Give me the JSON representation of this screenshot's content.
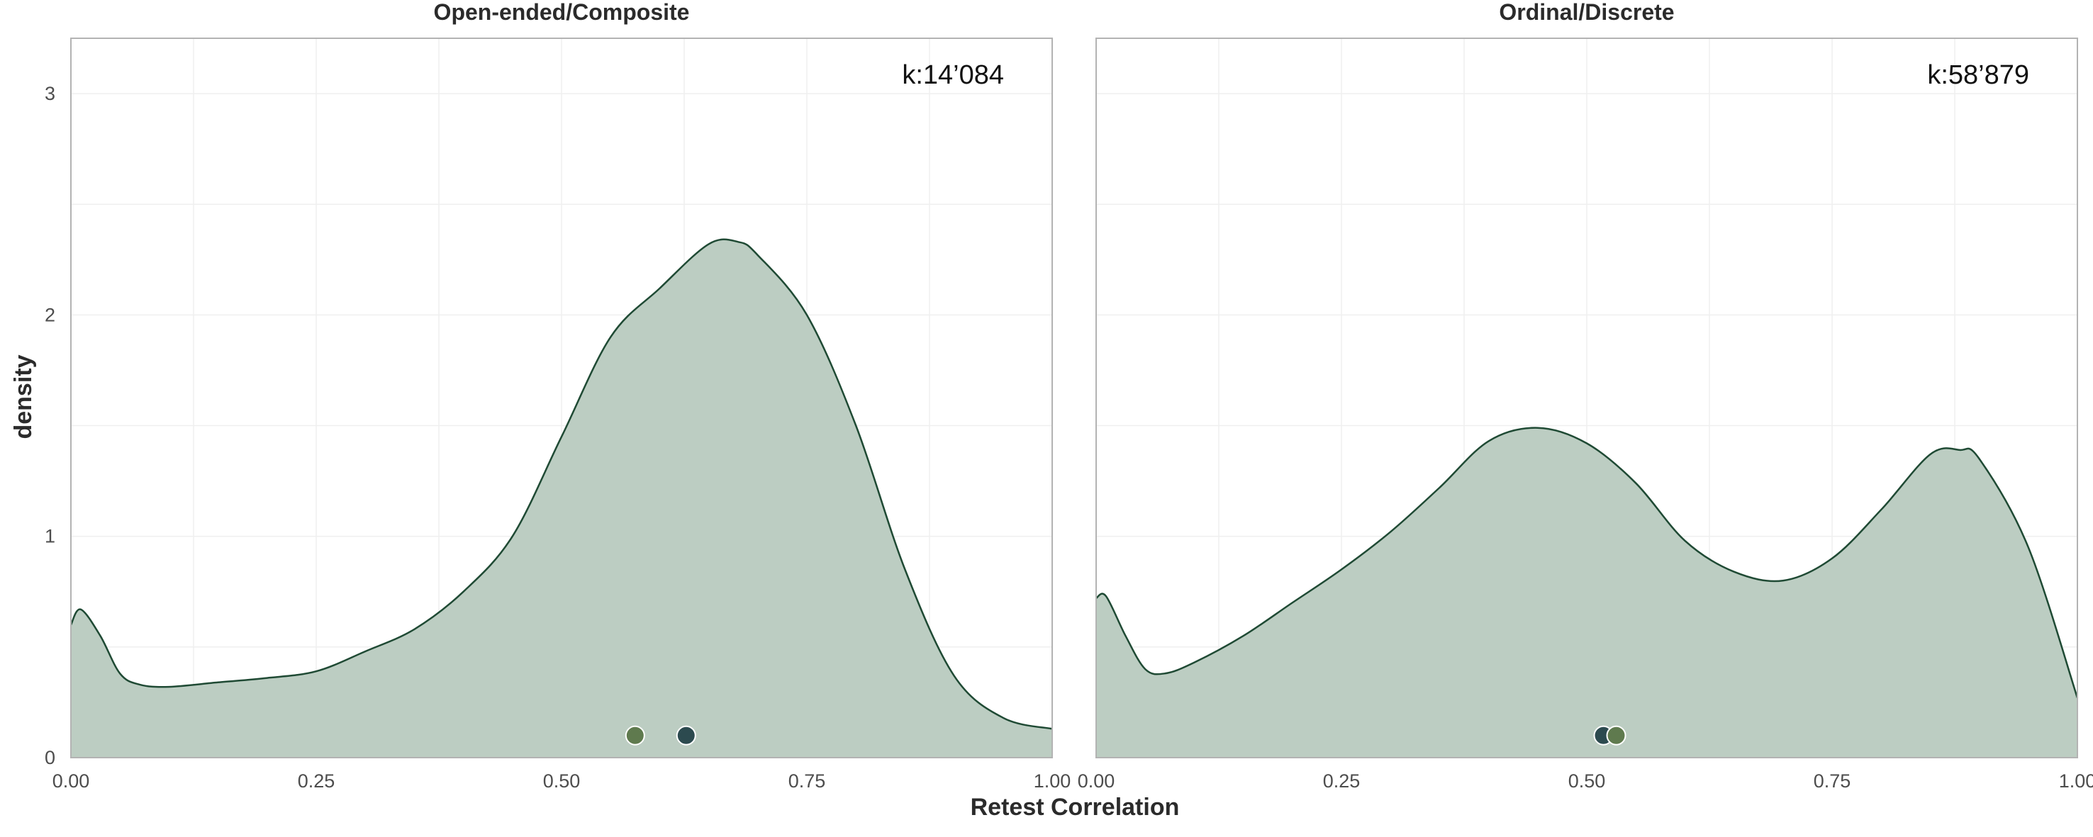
{
  "chart_data": {
    "type": "area",
    "xlabel": "Retest Correlation",
    "ylabel": "density",
    "xlim": [
      0,
      1
    ],
    "ylim": [
      0,
      3.25
    ],
    "x_ticks": [
      0,
      0.25,
      0.5,
      0.75,
      1
    ],
    "x_tick_labels": [
      "0.00",
      "0.25",
      "0.50",
      "0.75",
      "1.00"
    ],
    "y_ticks": [
      0,
      1,
      2,
      3
    ],
    "y_tick_labels": [
      "0",
      "1",
      "2",
      "3"
    ],
    "grid": true,
    "colors": {
      "fill": "#bccdc2",
      "line": "#1f4a34",
      "dot_dark": "#2c4a4f",
      "dot_green": "#5f7a4e",
      "frame": "#b3b3b3",
      "grid": "#efefef"
    },
    "panels": [
      {
        "title": "Open-ended/Composite",
        "annotation": "k:14’084",
        "x": [
          0,
          0.01,
          0.03,
          0.05,
          0.07,
          0.1,
          0.15,
          0.2,
          0.25,
          0.3,
          0.35,
          0.4,
          0.45,
          0.5,
          0.55,
          0.6,
          0.65,
          0.68,
          0.7,
          0.75,
          0.8,
          0.85,
          0.9,
          0.95,
          1.0
        ],
        "density": [
          0.6,
          0.67,
          0.55,
          0.38,
          0.33,
          0.32,
          0.34,
          0.36,
          0.39,
          0.48,
          0.58,
          0.75,
          1.0,
          1.45,
          1.9,
          2.12,
          2.32,
          2.33,
          2.27,
          2.0,
          1.5,
          0.85,
          0.37,
          0.18,
          0.13
        ],
        "points": [
          {
            "x": 0.575,
            "y": 0.1,
            "color": "#5f7a4e"
          },
          {
            "x": 0.627,
            "y": 0.1,
            "color": "#2c4a4f"
          }
        ]
      },
      {
        "title": "Ordinal/Discrete",
        "annotation": "k:58’879",
        "x": [
          0,
          0.01,
          0.03,
          0.05,
          0.07,
          0.1,
          0.15,
          0.2,
          0.25,
          0.3,
          0.35,
          0.4,
          0.45,
          0.5,
          0.55,
          0.6,
          0.65,
          0.7,
          0.75,
          0.8,
          0.85,
          0.88,
          0.9,
          0.95,
          1.0
        ],
        "density": [
          0.72,
          0.73,
          0.55,
          0.4,
          0.38,
          0.43,
          0.55,
          0.7,
          0.85,
          1.02,
          1.22,
          1.43,
          1.49,
          1.42,
          1.24,
          0.98,
          0.84,
          0.8,
          0.9,
          1.12,
          1.37,
          1.39,
          1.35,
          0.95,
          0.27
        ],
        "points": [
          {
            "x": 0.517,
            "y": 0.1,
            "color": "#2c4a4f"
          },
          {
            "x": 0.53,
            "y": 0.1,
            "color": "#5f7a4e"
          }
        ]
      }
    ]
  }
}
